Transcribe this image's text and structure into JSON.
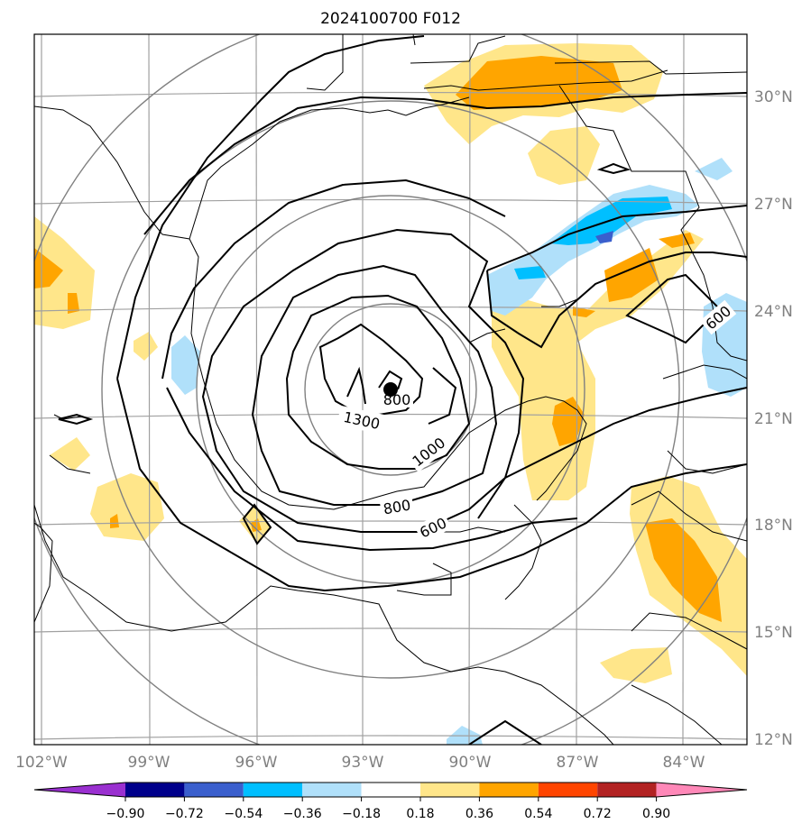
{
  "title": "2024100700 F012",
  "lat_labels": [
    "30°N",
    "27°N",
    "24°N",
    "21°N",
    "18°N",
    "15°N",
    "12°N"
  ],
  "lon_labels": [
    "102°W",
    "99°W",
    "96°W",
    "93°W",
    "90°W",
    "87°W",
    "84°W"
  ],
  "colorbar": {
    "tick_labels": [
      "−0.90",
      "−0.72",
      "−0.54",
      "−0.36",
      "−0.18",
      "0.18",
      "0.36",
      "0.54",
      "0.72",
      "0.90"
    ],
    "colors": [
      "#9a30d0",
      "#00008b",
      "#3a5fcd",
      "#00bfff",
      "#b0e0fa",
      "#ffffff",
      "#ffe68a",
      "#ffa500",
      "#ff4500",
      "#b22222",
      "#ff88b8"
    ]
  },
  "contour_labels": [
    "1300",
    "1000",
    "800",
    "800",
    "600",
    "600"
  ],
  "storm_center": "storm-center-marker"
}
